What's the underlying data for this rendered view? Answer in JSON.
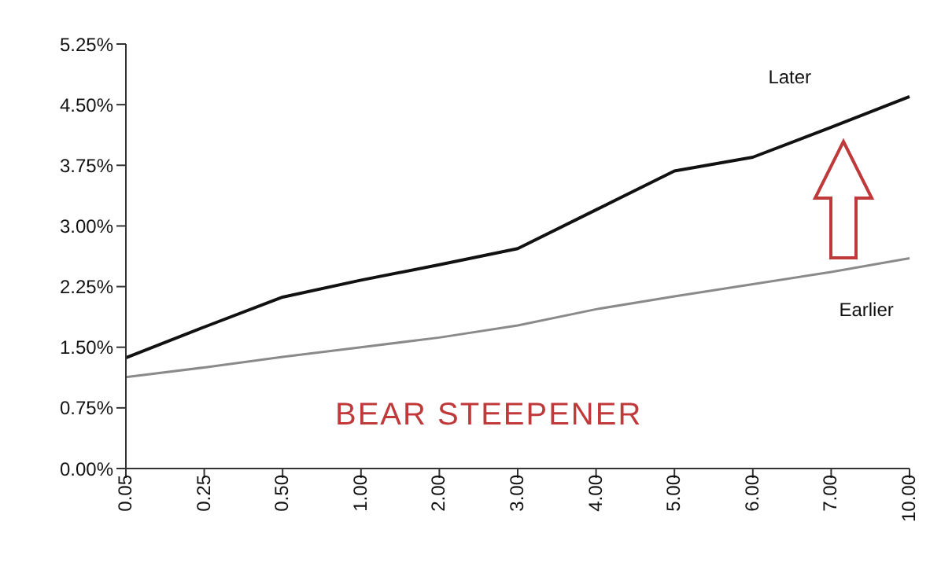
{
  "chart_data": {
    "type": "line",
    "categories": [
      "0.05",
      "0.25",
      "0.50",
      "1.00",
      "2.00",
      "3.00",
      "4.00",
      "5.00",
      "6.00",
      "7.00",
      "10.00"
    ],
    "series": [
      {
        "name": "Later",
        "color": "#111111",
        "values": [
          1.37,
          1.75,
          2.12,
          2.33,
          2.52,
          2.72,
          3.2,
          3.68,
          3.85,
          4.22,
          4.6
        ]
      },
      {
        "name": "Earlier",
        "color": "#8a8a8a",
        "values": [
          1.13,
          1.25,
          1.38,
          1.5,
          1.62,
          1.77,
          1.97,
          2.13,
          2.28,
          2.43,
          2.6
        ]
      }
    ],
    "ylim": [
      0,
      5.25
    ],
    "yticks": [
      {
        "value": 0,
        "label": "0.00%"
      },
      {
        "value": 0.75,
        "label": "0.75%"
      },
      {
        "value": 1.5,
        "label": "1.50%"
      },
      {
        "value": 2.25,
        "label": "2.25%"
      },
      {
        "value": 3,
        "label": "3.00%"
      },
      {
        "value": 3.75,
        "label": "3.75%"
      },
      {
        "value": 4.5,
        "label": "4.50%"
      },
      {
        "value": 5.25,
        "label": "5.25%"
      }
    ],
    "annotations": [
      "BEAR STEEPENER"
    ],
    "grid": false,
    "legend": false,
    "marker": "none",
    "line_style": "solid"
  }
}
